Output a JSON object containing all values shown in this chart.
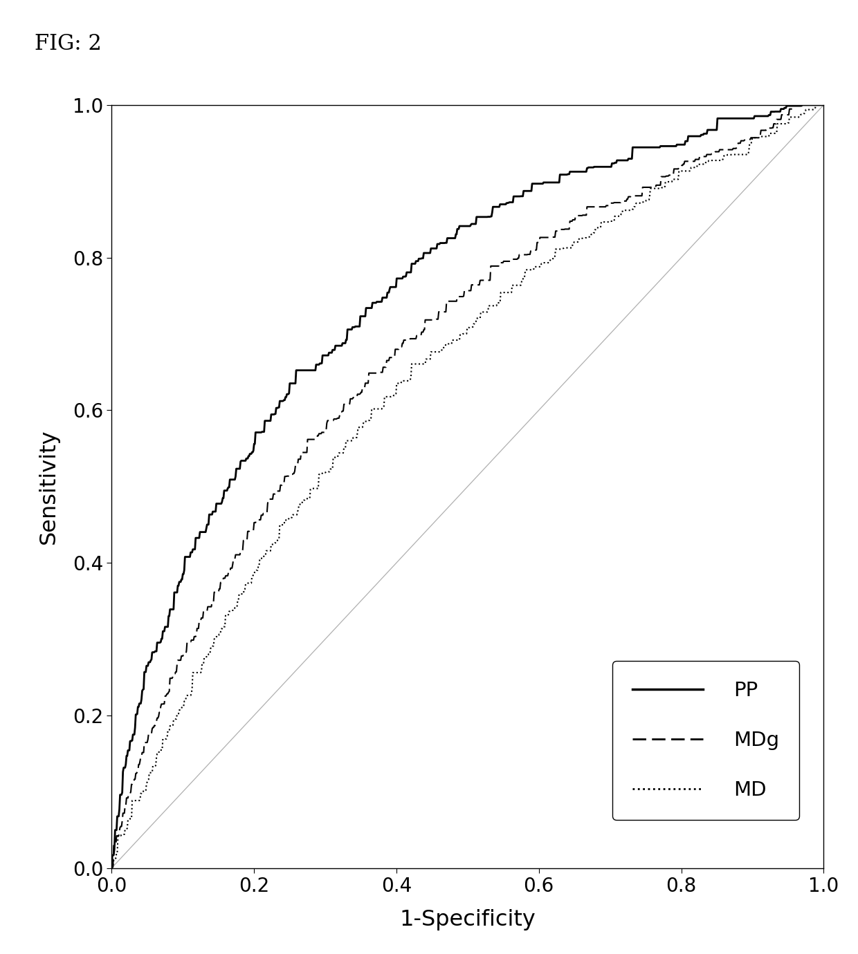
{
  "title": "FIG: 2",
  "xlabel": "1-Specificity",
  "ylabel": "Sensitivity",
  "xlim": [
    0.0,
    1.0
  ],
  "ylim": [
    0.0,
    1.0
  ],
  "xticks": [
    0.0,
    0.2,
    0.4,
    0.6,
    0.8,
    1.0
  ],
  "yticks": [
    0.0,
    0.2,
    0.4,
    0.6,
    0.8,
    1.0
  ],
  "background_color": "#ffffff",
  "legend_labels": [
    "PP",
    "MDg",
    "MD"
  ],
  "curve_color": "#000000",
  "diag_color": "#b0b0b0",
  "pp_keypoints_x": [
    0.0,
    0.02,
    0.05,
    0.08,
    0.1,
    0.15,
    0.2,
    0.25,
    0.3,
    0.35,
    0.4,
    0.45,
    0.5,
    0.55,
    0.6,
    0.65,
    0.7,
    0.75,
    0.8,
    0.85,
    0.9,
    0.95,
    1.0
  ],
  "pp_keypoints_y": [
    0.0,
    0.13,
    0.25,
    0.32,
    0.38,
    0.47,
    0.55,
    0.62,
    0.66,
    0.71,
    0.76,
    0.8,
    0.83,
    0.86,
    0.88,
    0.9,
    0.91,
    0.92,
    0.94,
    0.96,
    0.97,
    0.99,
    1.0
  ],
  "mdg_keypoints_x": [
    0.0,
    0.02,
    0.05,
    0.08,
    0.1,
    0.15,
    0.2,
    0.25,
    0.3,
    0.35,
    0.4,
    0.45,
    0.5,
    0.55,
    0.6,
    0.65,
    0.7,
    0.75,
    0.8,
    0.85,
    0.9,
    0.95,
    1.0
  ],
  "mdg_keypoints_y": [
    0.0,
    0.08,
    0.16,
    0.23,
    0.27,
    0.36,
    0.44,
    0.51,
    0.57,
    0.62,
    0.67,
    0.71,
    0.75,
    0.78,
    0.81,
    0.84,
    0.86,
    0.88,
    0.91,
    0.93,
    0.95,
    0.98,
    1.0
  ],
  "md_keypoints_x": [
    0.0,
    0.02,
    0.05,
    0.08,
    0.1,
    0.15,
    0.2,
    0.25,
    0.3,
    0.35,
    0.4,
    0.45,
    0.5,
    0.55,
    0.6,
    0.65,
    0.7,
    0.75,
    0.8,
    0.85,
    0.9,
    0.95,
    1.0
  ],
  "md_keypoints_y": [
    0.0,
    0.05,
    0.11,
    0.17,
    0.21,
    0.3,
    0.38,
    0.45,
    0.51,
    0.57,
    0.62,
    0.66,
    0.7,
    0.74,
    0.78,
    0.81,
    0.84,
    0.87,
    0.9,
    0.92,
    0.94,
    0.97,
    1.0
  ],
  "n_interp": 1000,
  "noise_pp": 0.008,
  "noise_mdg": 0.007,
  "noise_md": 0.007,
  "seed": 123
}
